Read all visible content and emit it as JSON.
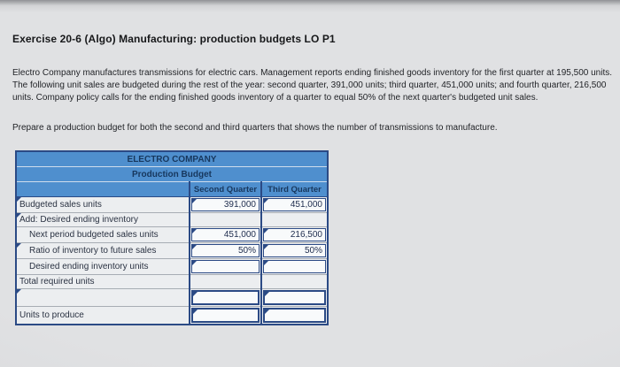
{
  "page": {
    "title": "Exercise 20-6 (Algo) Manufacturing: production budgets LO P1",
    "problem_text": "Electro Company manufactures transmissions for electric cars. Management reports ending finished goods inventory for the first quarter at 195,500 units. The following unit sales are budgeted during the rest of the year: second quarter, 391,000 units; third quarter, 451,000 units; and fourth quarter, 216,500 units. Company policy calls for the ending finished goods inventory of a quarter to equal 50% of the next quarter's budgeted unit sales.",
    "instruction_text": "Prepare a production budget for both the second and third quarters that shows the number of transmissions to manufacture."
  },
  "table": {
    "title": "ELECTRO COMPANY",
    "subtitle": "Production Budget",
    "columns": [
      "Second Quarter",
      "Third Quarter"
    ],
    "rows": [
      {
        "label": "Budgeted sales units",
        "indent": false,
        "label_marker": true,
        "type": "input",
        "thick": false,
        "q2": "391,000",
        "q3": "451,000"
      },
      {
        "label": "Add: Desired ending inventory",
        "indent": false,
        "label_marker": true,
        "type": "plain",
        "thick": false,
        "q2": "",
        "q3": ""
      },
      {
        "label": "Next period budgeted sales units",
        "indent": true,
        "label_marker": false,
        "type": "input",
        "thick": false,
        "q2": "451,000",
        "q3": "216,500"
      },
      {
        "label": "Ratio of inventory to future sales",
        "indent": true,
        "label_marker": true,
        "type": "input",
        "thick": false,
        "q2": "50%",
        "q3": "50%"
      },
      {
        "label": "Desired ending inventory units",
        "indent": true,
        "label_marker": false,
        "type": "input",
        "thick": false,
        "q2": "",
        "q3": ""
      },
      {
        "label": "Total required units",
        "indent": false,
        "label_marker": false,
        "type": "plain",
        "thick": false,
        "q2": "",
        "q3": ""
      },
      {
        "label": "",
        "indent": false,
        "label_marker": true,
        "type": "input",
        "thick": true,
        "q2": "",
        "q3": ""
      },
      {
        "label": "Units to produce",
        "indent": false,
        "label_marker": false,
        "type": "input",
        "thick": true,
        "q2": "",
        "q3": ""
      }
    ]
  },
  "colors": {
    "header_blue": "#4f8fce",
    "header_text": "#17375d",
    "border_navy": "#2b4a85",
    "page_bg": "#e0e1e3"
  }
}
